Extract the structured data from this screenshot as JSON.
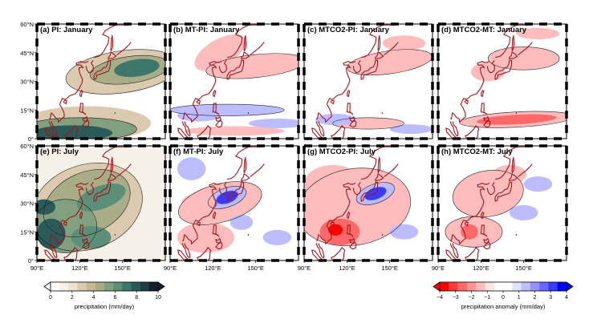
{
  "chart_data": {
    "type": "heatmap",
    "panels": [
      {
        "id": "a",
        "title": "(a) PI: January",
        "field": "precipitation",
        "season": "January",
        "comparison": "PI"
      },
      {
        "id": "b",
        "title": "(b) MT-PI: January",
        "field": "anomaly",
        "season": "January",
        "comparison": "MT-PI"
      },
      {
        "id": "c",
        "title": "(c) MTCO2-PI: January",
        "field": "anomaly",
        "season": "January",
        "comparison": "MTCO2-PI"
      },
      {
        "id": "d",
        "title": "(d) MTCO2-MT: January",
        "field": "anomaly",
        "season": "January",
        "comparison": "MTCO2-MT"
      },
      {
        "id": "e",
        "title": "(e) PI: July",
        "field": "precipitation",
        "season": "July",
        "comparison": "PI"
      },
      {
        "id": "f",
        "title": "(f) MT-PI: July",
        "field": "anomaly",
        "season": "July",
        "comparison": "MT-PI"
      },
      {
        "id": "g",
        "title": "(g) MTCO2-PI: July",
        "field": "anomaly",
        "season": "July",
        "comparison": "MTCO2-PI"
      },
      {
        "id": "h",
        "title": "(h) MTCO2-MT: July",
        "field": "anomaly",
        "season": "July",
        "comparison": "MTCO2-MT"
      }
    ],
    "lon_ticks": [
      "90°E",
      "120°E",
      "150°E"
    ],
    "lon_values": [
      90,
      120,
      150
    ],
    "lat_ticks": [
      "0°",
      "15°N",
      "30°N",
      "45°N",
      "60°N"
    ],
    "lat_values": [
      0,
      15,
      30,
      45,
      60
    ],
    "xlim": [
      90,
      180
    ],
    "ylim": [
      0,
      60
    ],
    "colorbars": [
      {
        "label": "precipitation (mm/day)",
        "ticks": [
          "0",
          "2",
          "4",
          "6",
          "8",
          "10"
        ],
        "tick_values": [
          0,
          2,
          4,
          6,
          8,
          10
        ],
        "range": [
          0,
          10
        ],
        "colors": [
          "#ffffff",
          "#f6f1e8",
          "#ece2cf",
          "#dccab0",
          "#c6b996",
          "#a8ad88",
          "#82a07e",
          "#5c8e78",
          "#3e766b",
          "#2a5b58",
          "#1d3f44",
          "#131f2b"
        ]
      },
      {
        "label": "precipitation anomaly (mm/day)",
        "ticks": [
          "−4",
          "−3",
          "−2",
          "−1",
          "0",
          "1",
          "2",
          "3",
          "4"
        ],
        "tick_values": [
          -4,
          -3,
          -2,
          -1,
          0,
          1,
          2,
          3,
          4
        ],
        "range": [
          -4,
          4
        ],
        "colors": [
          "#ff0000",
          "#ff3a3a",
          "#ff6868",
          "#ff9393",
          "#ffbcbc",
          "#ffe2e2",
          "#ffffff",
          "#ffffff",
          "#e2e2ff",
          "#bcbcff",
          "#9393ff",
          "#6868ff",
          "#3a3aff",
          "#0000ff"
        ]
      }
    ]
  }
}
